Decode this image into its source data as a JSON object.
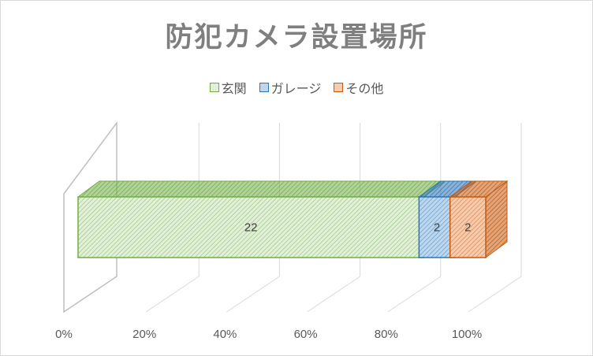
{
  "chart_data": {
    "type": "bar",
    "subtype": "3d-stacked-horizontal-100-percent",
    "title": "防犯カメラ設置場所",
    "categories": [
      ""
    ],
    "series": [
      {
        "name": "玄関",
        "values": [
          22
        ],
        "color": "#70ad47",
        "fill": "#e2f0d9",
        "pattern": "diagonal-hatch"
      },
      {
        "name": "ガレージ",
        "values": [
          2
        ],
        "color": "#2e75b6",
        "fill": "#bdd7ee",
        "pattern": "diagonal-hatch"
      },
      {
        "name": "その他",
        "values": [
          2
        ],
        "color": "#c55a11",
        "fill": "#f8cbad",
        "pattern": "diagonal-hatch"
      }
    ],
    "data_labels": [
      "22",
      "2",
      "2"
    ],
    "x_ticks": [
      "0%",
      "20%",
      "40%",
      "60%",
      "80%",
      "100%"
    ],
    "xlim": [
      0,
      100
    ],
    "grid": true,
    "legend_position": "top"
  }
}
